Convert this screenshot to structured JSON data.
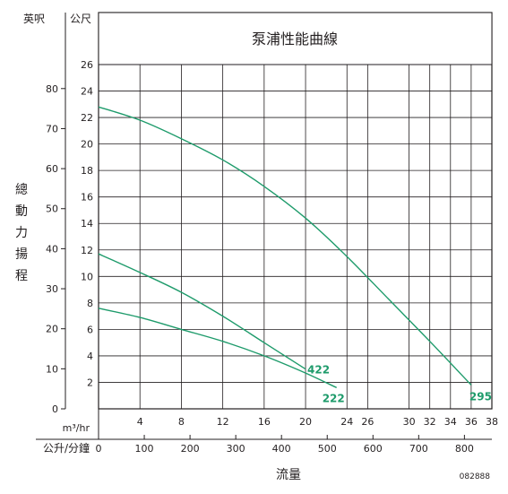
{
  "chart_data": {
    "type": "line",
    "title": "泵浦性能曲線",
    "xlabel": "流量",
    "ylabel": "總動力揚程",
    "y_units": {
      "ft": "英呎",
      "m": "公尺"
    },
    "x_units": {
      "m3hr": "m³/hr",
      "lpm": "公升/分鐘"
    },
    "x_m3hr": {
      "range": [
        0,
        38
      ],
      "ticks": [
        4,
        8,
        12,
        16,
        20,
        24,
        26,
        30,
        32,
        34,
        36,
        38
      ]
    },
    "x_lpm": {
      "range": [
        0,
        860
      ],
      "ticks": [
        0,
        100,
        200,
        300,
        400,
        500,
        600,
        700,
        800
      ]
    },
    "y_m": {
      "range": [
        0,
        26
      ],
      "ticks": [
        2,
        4,
        6,
        8,
        10,
        12,
        14,
        16,
        18,
        20,
        22,
        24,
        26
      ]
    },
    "y_ft": {
      "range": [
        0,
        86
      ],
      "ticks": [
        0,
        10,
        20,
        30,
        40,
        50,
        60,
        70,
        80
      ]
    },
    "grid": true,
    "line_color": "#1e9b6b",
    "series": [
      {
        "name": "295",
        "x": [
          0,
          4,
          8,
          12,
          16,
          20,
          24,
          28,
          32,
          36
        ],
        "y": [
          22.8,
          21.8,
          20.4,
          18.8,
          16.8,
          14.4,
          11.5,
          8.3,
          5.1,
          1.8
        ]
      },
      {
        "name": "422",
        "x": [
          0,
          4,
          8,
          12,
          16,
          20
        ],
        "y": [
          11.7,
          10.3,
          8.8,
          7.0,
          5.0,
          3.0
        ]
      },
      {
        "name": "222",
        "x": [
          0,
          4,
          8,
          12,
          16,
          20,
          23
        ],
        "y": [
          7.6,
          6.9,
          6.0,
          5.1,
          4.0,
          2.7,
          1.6
        ]
      }
    ]
  },
  "doc_code": "082888"
}
